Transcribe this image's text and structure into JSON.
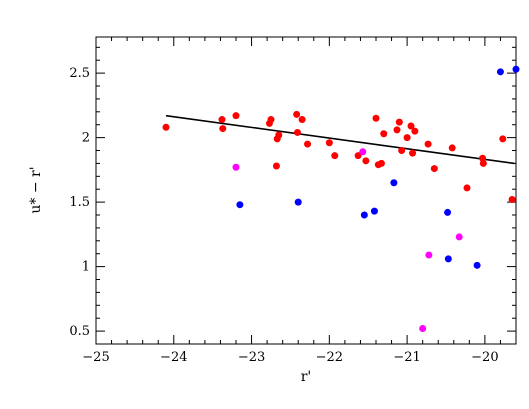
{
  "chart_data": {
    "type": "scatter",
    "xlabel": "r'",
    "ylabel": "u* − r'",
    "xlim": [
      -25,
      -19.6
    ],
    "ylim": [
      0.4,
      2.78
    ],
    "xticks": [
      -25,
      -24,
      -23,
      -22,
      -21,
      -20
    ],
    "xtick_labels": [
      "−25",
      "−24",
      "−23",
      "−22",
      "−21",
      "−20"
    ],
    "yticks": [
      0.5,
      1,
      1.5,
      2,
      2.5
    ],
    "ytick_labels": [
      "0.5",
      "1",
      "1.5",
      "2",
      "2.5"
    ],
    "grid": false,
    "fit_line": {
      "x": [
        -24.1,
        -19.62
      ],
      "y": [
        2.17,
        1.8
      ],
      "color": "#000000"
    },
    "series": [
      {
        "color": "#ff0000",
        "points": [
          [
            -24.1,
            2.08
          ],
          [
            -23.38,
            2.14
          ],
          [
            -23.37,
            2.07
          ],
          [
            -23.2,
            2.17
          ],
          [
            -22.77,
            2.11
          ],
          [
            -22.75,
            2.14
          ],
          [
            -22.68,
            1.78
          ],
          [
            -22.67,
            1.99
          ],
          [
            -22.65,
            2.02
          ],
          [
            -22.42,
            2.18
          ],
          [
            -22.41,
            2.04
          ],
          [
            -22.35,
            2.14
          ],
          [
            -22.28,
            1.95
          ],
          [
            -22.0,
            1.96
          ],
          [
            -21.93,
            1.86
          ],
          [
            -21.63,
            1.86
          ],
          [
            -21.53,
            1.82
          ],
          [
            -21.4,
            2.15
          ],
          [
            -21.37,
            1.79
          ],
          [
            -21.33,
            1.8
          ],
          [
            -21.3,
            2.03
          ],
          [
            -21.13,
            2.06
          ],
          [
            -21.1,
            2.12
          ],
          [
            -21.07,
            1.9
          ],
          [
            -21.0,
            2.0
          ],
          [
            -20.95,
            2.09
          ],
          [
            -20.93,
            1.88
          ],
          [
            -20.9,
            2.05
          ],
          [
            -20.73,
            1.95
          ],
          [
            -20.65,
            1.76
          ],
          [
            -20.42,
            1.92
          ],
          [
            -20.23,
            1.61
          ],
          [
            -20.03,
            1.84
          ],
          [
            -20.02,
            1.8
          ],
          [
            -19.77,
            1.99
          ],
          [
            -19.65,
            1.52
          ]
        ]
      },
      {
        "color": "#ff00ff",
        "points": [
          [
            -23.2,
            1.77
          ],
          [
            -21.57,
            1.89
          ],
          [
            -20.8,
            0.52
          ],
          [
            -20.72,
            1.09
          ],
          [
            -20.33,
            1.23
          ]
        ]
      },
      {
        "color": "#0000ff",
        "points": [
          [
            -23.15,
            1.48
          ],
          [
            -22.4,
            1.5
          ],
          [
            -21.55,
            1.4
          ],
          [
            -21.42,
            1.43
          ],
          [
            -21.17,
            1.65
          ],
          [
            -20.48,
            1.42
          ],
          [
            -20.47,
            1.06
          ],
          [
            -20.1,
            1.01
          ],
          [
            -19.8,
            2.51
          ],
          [
            -19.6,
            2.53
          ]
        ]
      }
    ]
  }
}
